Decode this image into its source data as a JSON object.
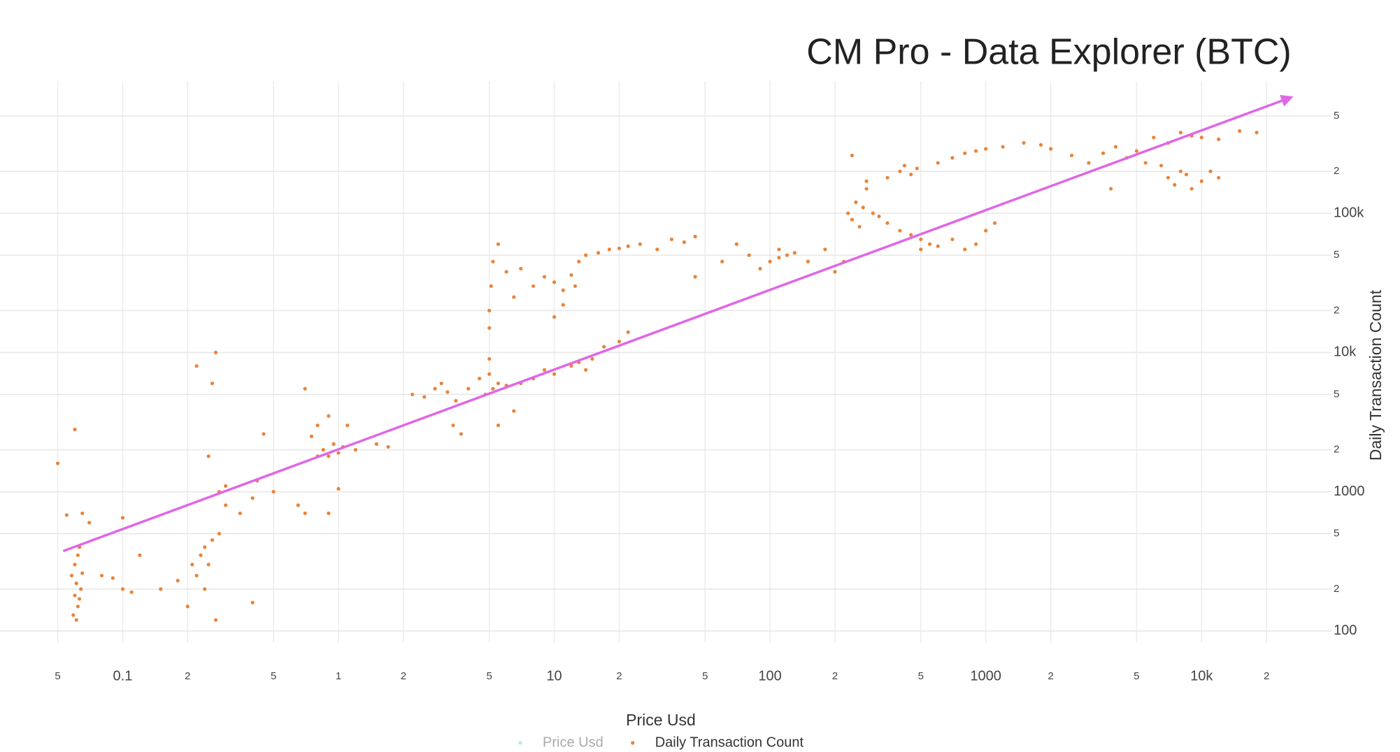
{
  "chart_data": {
    "type": "scatter",
    "title": "CM Pro - Data Explorer (BTC)",
    "x_label": "Price Usd",
    "y_label": "Daily Transaction Count",
    "xscale": "log",
    "yscale": "log",
    "grid": true,
    "legend": "bottom",
    "xlim": [
      0.027,
      40000
    ],
    "ylim": [
      82,
      890000
    ],
    "xticks": [
      {
        "value": 0.05,
        "label": "5"
      },
      0.1,
      {
        "value": 0.2,
        "label": "2"
      },
      {
        "value": 0.5,
        "label": "5"
      },
      1,
      {
        "value": 2,
        "label": "2"
      },
      {
        "value": 5,
        "label": "5"
      },
      10,
      {
        "value": 20,
        "label": "2"
      },
      {
        "value": 50,
        "label": "5"
      },
      100,
      {
        "value": 200,
        "label": "2"
      },
      {
        "value": 500,
        "label": "5"
      },
      1000,
      {
        "value": 2000,
        "label": "2"
      },
      {
        "value": 5000,
        "label": "5"
      },
      {
        "value": 10000,
        "label": "10k"
      },
      {
        "value": 20000,
        "label": "2"
      }
    ],
    "yticks": [
      100,
      {
        "value": 200,
        "label": "2"
      },
      {
        "value": 500,
        "label": "5"
      },
      1000,
      {
        "value": 2000,
        "label": "2"
      },
      {
        "value": 5000,
        "label": "5"
      },
      {
        "value": 10000,
        "label": "10k"
      },
      {
        "value": 20000,
        "label": "2"
      },
      {
        "value": 50000,
        "label": "5"
      },
      {
        "value": 100000,
        "label": "100k"
      },
      {
        "value": 200000,
        "label": "2"
      },
      {
        "value": 500000,
        "label": "5"
      }
    ],
    "trend_line": {
      "color": "#e066e6",
      "x": [
        0.053,
        26000
      ],
      "y": [
        375,
        680000
      ]
    },
    "series": [
      {
        "name": "Price Usd",
        "color": "#8cc4e0",
        "visible": false,
        "x": [],
        "values": []
      },
      {
        "name": "Daily Transaction Count",
        "color": "#e8843a",
        "visible": true,
        "x": [
          0.058,
          0.06,
          0.061,
          0.062,
          0.06,
          0.063,
          0.059,
          0.064,
          0.065,
          0.062,
          0.061,
          0.063,
          0.05,
          0.055,
          0.06,
          0.065,
          0.07,
          0.1,
          0.11,
          0.1,
          0.12,
          0.08,
          0.09,
          0.15,
          0.18,
          0.2,
          0.21,
          0.22,
          0.23,
          0.24,
          0.25,
          0.26,
          0.24,
          0.22,
          0.27,
          0.26,
          0.28,
          0.27,
          0.25,
          0.28,
          0.3,
          0.3,
          0.35,
          0.4,
          0.42,
          0.4,
          0.45,
          0.5,
          0.7,
          0.75,
          0.8,
          0.85,
          0.9,
          0.95,
          0.9,
          1,
          1.05,
          1.1,
          0.8,
          0.7,
          0.9,
          1,
          0.65,
          1.2,
          1.5,
          1.7,
          2.2,
          2.5,
          2.8,
          3,
          3.2,
          3.5,
          3.4,
          3.7,
          4,
          4.5,
          5,
          5.2,
          5.5,
          4.8,
          6,
          5,
          5.5,
          6.5,
          7,
          8,
          9,
          10,
          12,
          13,
          15,
          17,
          20,
          22,
          14,
          5,
          5,
          5.1,
          5.2,
          5.5,
          6,
          6.5,
          7,
          8,
          9,
          10,
          11,
          12,
          12.5,
          11,
          10,
          13,
          14,
          16,
          18,
          20,
          22,
          25,
          30,
          35,
          40,
          45,
          45,
          60,
          70,
          80,
          90,
          100,
          110,
          120,
          130,
          110,
          150,
          180,
          200,
          220,
          230,
          240,
          250,
          260,
          270,
          280,
          300,
          320,
          240,
          280,
          350,
          400,
          420,
          450,
          480,
          600,
          700,
          800,
          900,
          1000,
          1200,
          1500,
          1800,
          2000,
          2500,
          3000,
          3500,
          4000,
          4500,
          5000,
          6000,
          7000,
          8000,
          9000,
          10000,
          12000,
          15000,
          18000,
          350,
          400,
          450,
          500,
          550,
          600,
          700,
          800,
          900,
          1000,
          1100,
          500,
          6500,
          7000,
          7500,
          8000,
          8500,
          9000,
          10000,
          11000,
          12000,
          3800,
          5500
        ],
        "values": [
          250,
          180,
          220,
          150,
          300,
          400,
          130,
          200,
          260,
          350,
          120,
          170,
          1600,
          680,
          2800,
          700,
          600,
          200,
          190,
          650,
          350,
          250,
          240,
          200,
          230,
          150,
          300,
          250,
          350,
          400,
          300,
          450,
          200,
          8000,
          10000,
          6000,
          500,
          120,
          1800,
          1000,
          1100,
          800,
          700,
          900,
          1200,
          160,
          2600,
          1000,
          5500,
          2500,
          3000,
          2000,
          1800,
          2200,
          3500,
          1900,
          2100,
          3000,
          1800,
          700,
          700,
          1050,
          800,
          2000,
          2200,
          2100,
          5000,
          4800,
          5500,
          6000,
          5200,
          4500,
          3000,
          2600,
          5500,
          6500,
          7000,
          5500,
          6000,
          5000,
          5800,
          9000,
          3000,
          3800,
          6000,
          6500,
          7500,
          7000,
          8000,
          8500,
          9000,
          11000,
          12000,
          14000,
          7500,
          15000,
          20000,
          30000,
          45000,
          60000,
          38000,
          25000,
          40000,
          30000,
          35000,
          32000,
          28000,
          36000,
          30000,
          22000,
          18000,
          45000,
          50000,
          52000,
          55000,
          56000,
          58000,
          60000,
          55000,
          65000,
          62000,
          35000,
          68000,
          45000,
          60000,
          50000,
          40000,
          45000,
          55000,
          50000,
          52000,
          48000,
          45000,
          55000,
          38000,
          45000,
          100000,
          90000,
          120000,
          80000,
          110000,
          150000,
          100000,
          95000,
          260000,
          170000,
          180000,
          200000,
          220000,
          190000,
          210000,
          230000,
          250000,
          270000,
          280000,
          290000,
          300000,
          320000,
          310000,
          290000,
          260000,
          230000,
          270000,
          300000,
          250000,
          280000,
          350000,
          320000,
          380000,
          360000,
          350000,
          340000,
          390000,
          380000,
          85000,
          75000,
          70000,
          65000,
          60000,
          58000,
          65000,
          55000,
          60000,
          75000,
          85000,
          55000,
          220000,
          180000,
          160000,
          200000,
          190000,
          150000,
          170000,
          200000,
          180000,
          150000,
          230000
        ]
      }
    ]
  }
}
